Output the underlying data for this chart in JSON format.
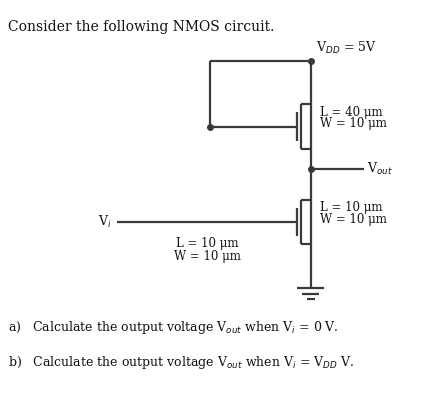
{
  "title": "Consider the following NMOS circuit.",
  "vdd_label": "V$_{DD}$ = 5V",
  "load_label_L": "L = 40 μm",
  "load_label_W": "W = 10 μm",
  "driver_label_L": "L = 10 μm",
  "driver_label_W": "W = 10 μm",
  "gate_label_L": "L = 10 μm",
  "gate_label_W": "W = 10 μm",
  "vi_label": "V$_i$",
  "vout_label": "V$_{out}$",
  "qa": "a)   Calculate the output voltage V$_{out}$ when V$_i$ = 0 V.",
  "qb": "b)   Calculate the output voltage V$_{out}$ when V$_i$ = V$_{DD}$ V.",
  "line_color": "#3a3a3a",
  "text_color": "#111111",
  "bg_color": "#ffffff"
}
